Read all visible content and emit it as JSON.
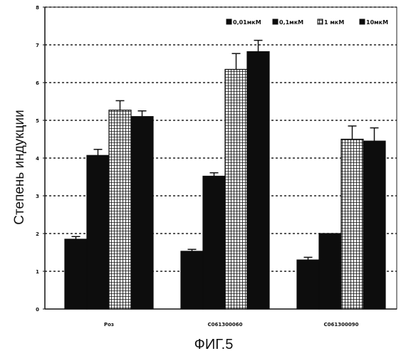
{
  "figure_label": "ФИГ.5",
  "chart_data": {
    "type": "bar",
    "ylabel": "Степень индукции",
    "xlabel": "",
    "ylim": [
      0,
      8
    ],
    "yticks": [
      "0",
      "1",
      "2",
      "3",
      "4",
      "5",
      "6",
      "7",
      "8"
    ],
    "grid": true,
    "legend_position": "top-right",
    "categories": [
      "Роз",
      "C061300060",
      "C061300090"
    ],
    "series": [
      {
        "name": "0,01мкМ",
        "values": [
          1.85,
          1.53,
          1.3
        ],
        "errors": [
          0.07,
          0.05,
          0.07
        ],
        "pattern": "solid"
      },
      {
        "name": "0,1мкМ",
        "values": [
          4.07,
          3.52,
          2.0
        ],
        "errors": [
          0.16,
          0.09,
          0.0
        ],
        "pattern": "solid"
      },
      {
        "name": "1 мкМ",
        "values": [
          5.27,
          6.35,
          4.5
        ],
        "errors": [
          0.25,
          0.42,
          0.35
        ],
        "pattern": "grid"
      },
      {
        "name": "10мкМ",
        "values": [
          5.1,
          6.82,
          4.45
        ],
        "errors": [
          0.15,
          0.3,
          0.35
        ],
        "pattern": "solid"
      }
    ]
  }
}
